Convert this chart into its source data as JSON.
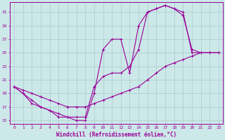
{
  "xlabel": "Windchill (Refroidissement éolien,°C)",
  "bg_color": "#cce8e8",
  "line_color": "#990099",
  "grid_color": "#aacccc",
  "xlim": [
    -0.5,
    23.5
  ],
  "ylim": [
    14.5,
    32.5
  ],
  "xticks": [
    0,
    1,
    2,
    3,
    4,
    5,
    6,
    7,
    8,
    9,
    10,
    11,
    12,
    13,
    14,
    15,
    16,
    17,
    18,
    19,
    20,
    21,
    22,
    23
  ],
  "yticks": [
    15,
    17,
    19,
    21,
    23,
    25,
    27,
    29,
    31
  ],
  "line1_x": [
    0,
    1,
    2,
    3,
    4,
    5,
    6,
    7,
    8,
    9,
    10,
    11,
    12,
    13,
    14,
    15,
    16,
    17,
    18,
    19,
    20,
    21,
    22,
    23
  ],
  "line1_y": [
    20,
    19,
    17.5,
    17,
    16.5,
    15.5,
    15.5,
    15,
    15,
    19,
    25.5,
    27,
    27,
    22,
    29,
    31,
    31.5,
    32,
    31.5,
    30.5,
    25.5,
    25,
    25,
    25
  ],
  "line2_x": [
    0,
    1,
    2,
    3,
    4,
    5,
    6,
    7,
    8,
    9,
    10,
    11,
    12,
    13,
    14,
    15,
    16,
    17,
    18,
    19,
    20,
    21,
    22,
    23
  ],
  "line2_y": [
    20,
    19,
    18,
    17,
    16.5,
    16,
    15.5,
    15.5,
    15.5,
    20,
    21.5,
    22,
    22,
    23,
    25.5,
    31,
    31.5,
    32,
    31.5,
    31,
    25,
    25,
    25,
    25
  ],
  "line3_x": [
    0,
    1,
    2,
    3,
    4,
    5,
    6,
    7,
    8,
    9,
    10,
    11,
    12,
    13,
    14,
    15,
    16,
    17,
    18,
    19,
    20,
    21,
    22,
    23
  ],
  "line3_y": [
    20,
    19.5,
    19,
    18.5,
    18,
    17.5,
    17,
    17,
    17,
    17.5,
    18,
    18.5,
    19,
    19.5,
    20,
    21,
    22,
    23,
    23.5,
    24,
    24.5,
    25,
    25,
    25
  ]
}
